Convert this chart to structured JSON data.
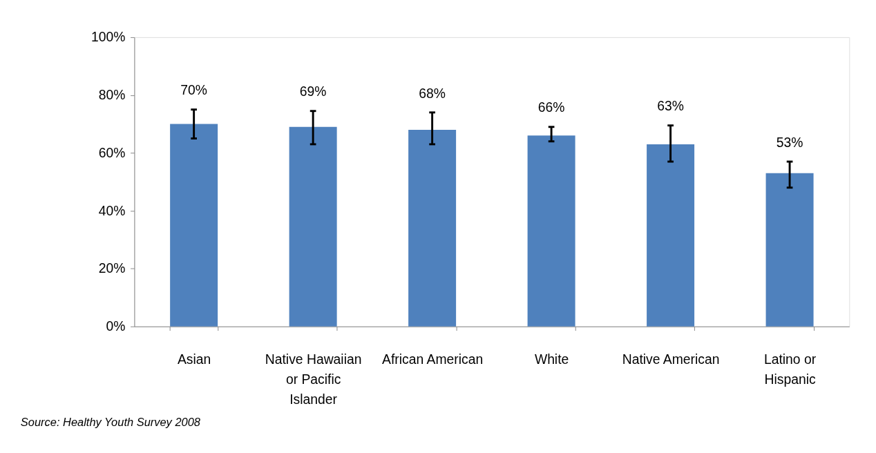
{
  "chart_data": {
    "type": "bar",
    "categories": [
      "Asian",
      "Native Hawaiian or Pacific Islander",
      "African American",
      "White",
      "Native American",
      "Latino or Hispanic"
    ],
    "values": [
      70,
      69,
      68,
      66,
      63,
      53
    ],
    "color": "#4f81bd",
    "errors": [
      [
        65,
        75
      ],
      [
        63,
        74.5
      ],
      [
        63,
        74
      ],
      [
        64,
        69
      ],
      [
        57,
        69.5
      ],
      [
        48,
        57
      ]
    ],
    "value_labels": [
      "70%",
      "69%",
      "68%",
      "66%",
      "63%",
      "53%"
    ],
    "ylim": [
      0,
      100
    ],
    "yticks": [
      {
        "value": 0,
        "label": "0%"
      },
      {
        "value": 20,
        "label": "20%"
      },
      {
        "value": 40,
        "label": "40%"
      },
      {
        "value": 60,
        "label": "60%"
      },
      {
        "value": 80,
        "label": "80%"
      },
      {
        "value": 100,
        "label": "100%"
      }
    ],
    "grid": false,
    "annotations": [
      "Source: Healthy Youth Survey 2008"
    ]
  }
}
